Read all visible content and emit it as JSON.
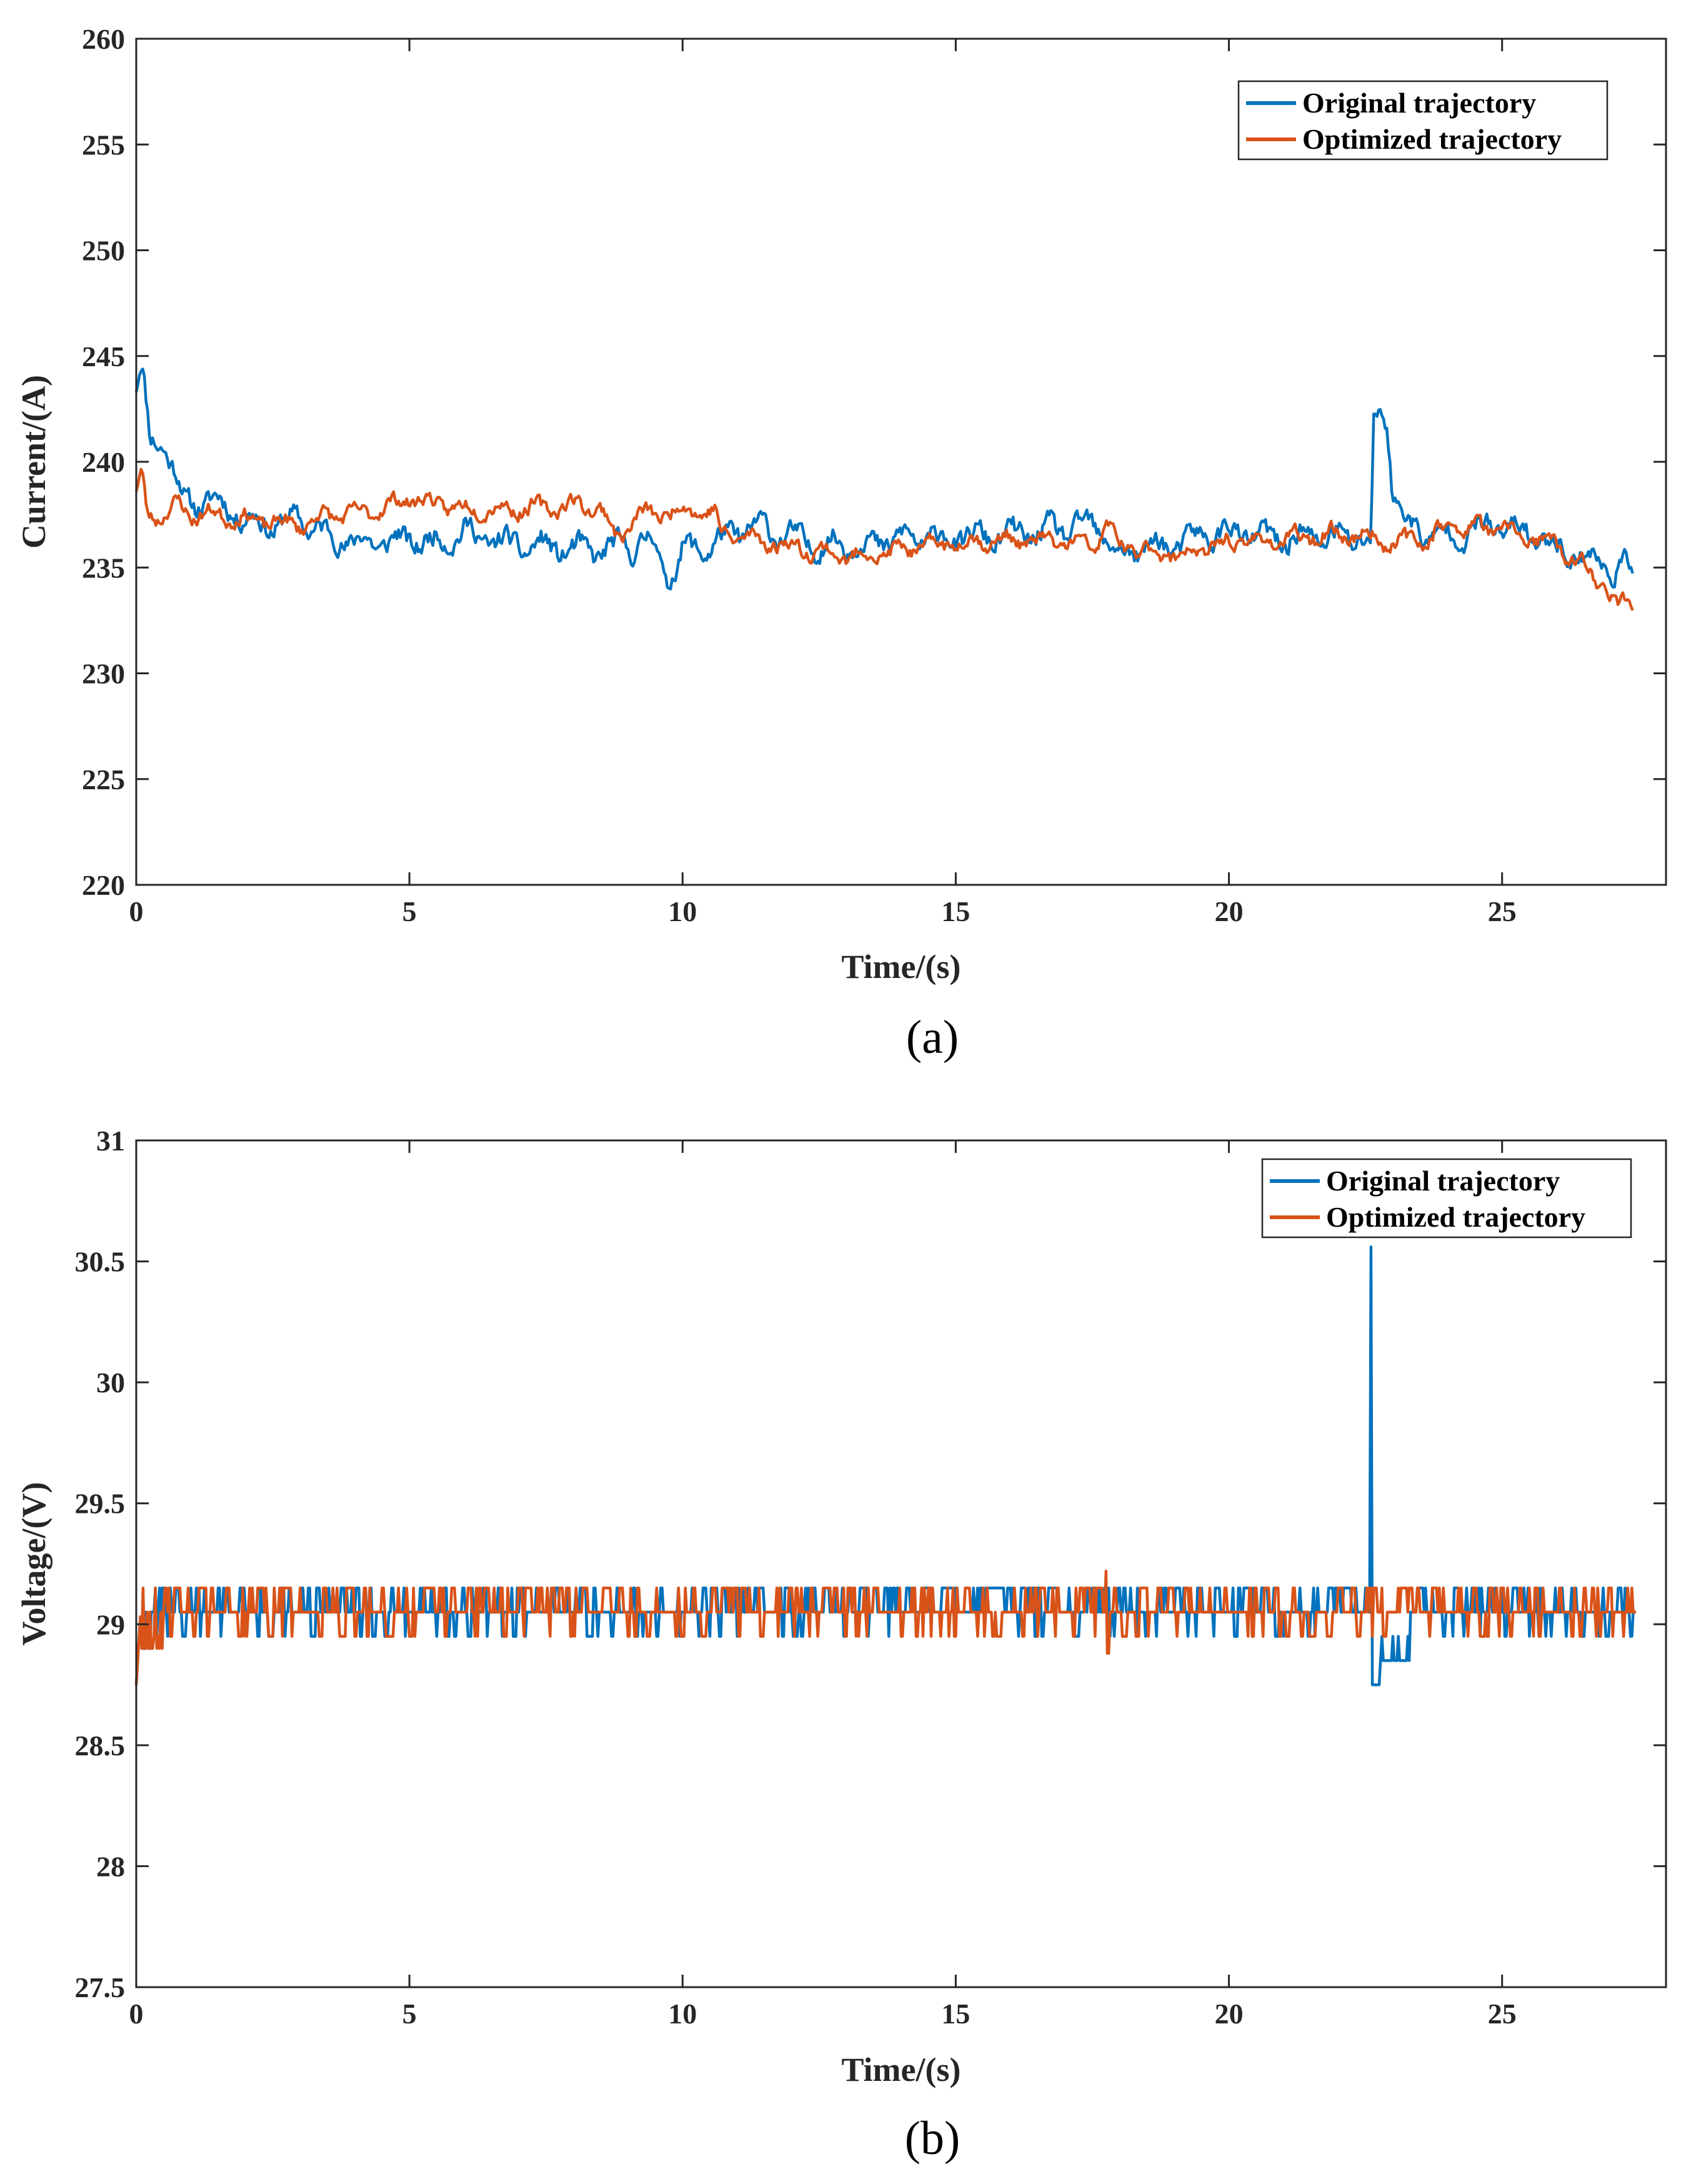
{
  "chart_data": [
    {
      "id": "a",
      "type": "line",
      "caption": "(a)",
      "xlabel": "Time/(s)",
      "ylabel": "Current/(A)",
      "xlim": [
        0,
        28
      ],
      "ylim": [
        220,
        260
      ],
      "xticks": [
        0,
        5,
        10,
        15,
        20,
        25
      ],
      "yticks": [
        220,
        225,
        230,
        235,
        240,
        245,
        250,
        255,
        260
      ],
      "legend": "top-right",
      "series": [
        {
          "name": "Original trajectory",
          "color": "#0072BD",
          "noise": 0.9,
          "seed": 11,
          "points": [
            [
              0,
              243.5
            ],
            [
              0.1,
              244.6
            ],
            [
              0.25,
              241
            ],
            [
              0.5,
              241
            ],
            [
              0.7,
              239.5
            ],
            [
              0.9,
              238
            ],
            [
              1.2,
              238.2
            ],
            [
              1.6,
              238
            ],
            [
              2,
              237.3
            ],
            [
              2.5,
              237
            ],
            [
              3,
              237.3
            ],
            [
              3.5,
              236.5
            ],
            [
              4,
              236.2
            ],
            [
              4.5,
              236.2
            ],
            [
              5,
              236.3
            ],
            [
              5.5,
              236.2
            ],
            [
              6,
              236.7
            ],
            [
              6.5,
              236.3
            ],
            [
              7,
              236
            ],
            [
              7.5,
              236
            ],
            [
              8,
              235.8
            ],
            [
              8.5,
              235.8
            ],
            [
              9,
              236
            ],
            [
              9.5,
              236.3
            ],
            [
              9.7,
              234.3
            ],
            [
              10,
              235.8
            ],
            [
              10.5,
              236
            ],
            [
              11,
              236.7
            ],
            [
              11.5,
              236.9
            ],
            [
              12,
              236.4
            ],
            [
              12.5,
              236
            ],
            [
              13,
              236.2
            ],
            [
              13.5,
              236.1
            ],
            [
              14,
              236.4
            ],
            [
              15,
              236.4
            ],
            [
              16,
              236.5
            ],
            [
              17,
              236.8
            ],
            [
              17.5,
              237
            ],
            [
              17.8,
              236.3
            ],
            [
              18,
              235.5
            ],
            [
              18.5,
              236
            ],
            [
              19,
              236
            ],
            [
              19.5,
              236.5
            ],
            [
              20,
              236.7
            ],
            [
              20.5,
              236.5
            ],
            [
              21,
              236.3
            ],
            [
              21.5,
              236.5
            ],
            [
              22,
              236.4
            ],
            [
              22.5,
              236.4
            ],
            [
              22.6,
              236
            ],
            [
              22.65,
              242
            ],
            [
              22.9,
              242
            ],
            [
              23,
              238.5
            ],
            [
              23.3,
              237
            ],
            [
              23.5,
              236.6
            ],
            [
              24,
              236.5
            ],
            [
              24.5,
              236.8
            ],
            [
              25,
              236.9
            ],
            [
              25.5,
              236.6
            ],
            [
              26,
              236
            ],
            [
              26.5,
              235.5
            ],
            [
              27,
              235
            ],
            [
              27.2,
              234.8
            ],
            [
              27.4,
              235
            ]
          ]
        },
        {
          "name": "Optimized trajectory",
          "color": "#D95319",
          "noise": 0.6,
          "seed": 23,
          "points": [
            [
              0,
              238.5
            ],
            [
              0.1,
              239.5
            ],
            [
              0.2,
              237.5
            ],
            [
              0.5,
              237.5
            ],
            [
              0.8,
              238
            ],
            [
              1,
              237.5
            ],
            [
              1.5,
              237.5
            ],
            [
              2,
              237.3
            ],
            [
              3,
              237
            ],
            [
              3.5,
              237.5
            ],
            [
              4,
              237.5
            ],
            [
              4.5,
              237.8
            ],
            [
              5,
              238.3
            ],
            [
              5.5,
              238
            ],
            [
              6,
              237.8
            ],
            [
              7,
              237.8
            ],
            [
              7.5,
              237.8
            ],
            [
              8,
              238
            ],
            [
              8.5,
              237.8
            ],
            [
              8.8,
              236.4
            ],
            [
              9.2,
              237.5
            ],
            [
              9.5,
              237.5
            ],
            [
              10,
              237.8
            ],
            [
              10.6,
              237.6
            ],
            [
              10.7,
              236.6
            ],
            [
              11,
              236.5
            ],
            [
              12,
              236
            ],
            [
              12.5,
              235.8
            ],
            [
              13,
              235.5
            ],
            [
              14,
              235.8
            ],
            [
              15,
              236.2
            ],
            [
              16,
              236.3
            ],
            [
              17,
              236.2
            ],
            [
              17.5,
              236
            ],
            [
              17.8,
              237
            ],
            [
              18,
              236
            ],
            [
              18.5,
              235.8
            ],
            [
              19,
              235.6
            ],
            [
              19.5,
              235.8
            ],
            [
              20,
              236.2
            ],
            [
              21,
              236.3
            ],
            [
              22,
              236.6
            ],
            [
              22.5,
              236.5
            ],
            [
              23,
              236.2
            ],
            [
              23.5,
              236.3
            ],
            [
              24,
              236.9
            ],
            [
              24.5,
              236.9
            ],
            [
              25,
              236.8
            ],
            [
              26,
              236
            ],
            [
              26.5,
              235
            ],
            [
              27,
              233.8
            ],
            [
              27.1,
              233
            ],
            [
              27.4,
              233.5
            ]
          ]
        }
      ]
    },
    {
      "id": "b",
      "type": "line",
      "caption": "(b)",
      "xlabel": "Time/(s)",
      "ylabel": "Voltage/(V)",
      "xlim": [
        0,
        28
      ],
      "ylim": [
        27.5,
        31
      ],
      "xticks": [
        0,
        5,
        10,
        15,
        20,
        25
      ],
      "yticks": [
        27.5,
        28,
        28.5,
        29,
        29.5,
        30,
        30.5,
        31
      ],
      "legend": "top-right",
      "series": [
        {
          "name": "Original trajectory",
          "color": "#0072BD",
          "levels": [
            28.95,
            29.05,
            29.15
          ],
          "start": 28.75,
          "seed": 37,
          "spike": {
            "t": 22.6,
            "peak": 30.56,
            "dip": 28.75,
            "recover": 28.95,
            "until": 23.3
          }
        },
        {
          "name": "Optimized trajectory",
          "color": "#D95319",
          "levels": [
            28.95,
            29.05,
            29.1,
            29.15
          ],
          "start": 28.75,
          "seed": 53,
          "spike": {
            "t": 17.75,
            "peak": 29.22,
            "dip": 28.88
          }
        }
      ]
    }
  ]
}
